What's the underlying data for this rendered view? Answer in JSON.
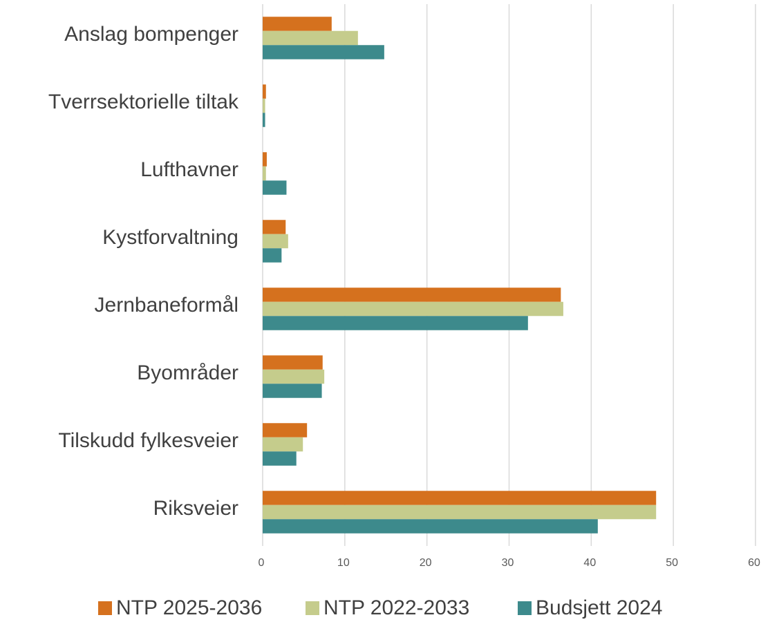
{
  "chart_data": {
    "type": "barh",
    "categories": [
      "Anslag bompenger",
      "Tverrsektorielle tiltak",
      "Lufthavner",
      "Kystforvaltning",
      "Jernbaneformål",
      "Byområder",
      "Tilskudd fylkesveier",
      "Riksveier"
    ],
    "series": [
      {
        "name": "NTP 2025-2036",
        "color": "#d5711e",
        "values": [
          8.4,
          0.4,
          0.5,
          2.8,
          36.3,
          7.3,
          5.4,
          47.9
        ]
      },
      {
        "name": "NTP 2022-2033",
        "color": "#c5cc8c",
        "values": [
          11.6,
          0.3,
          0.4,
          3.1,
          36.6,
          7.5,
          4.9,
          47.9
        ]
      },
      {
        "name": "Budsjett 2024",
        "color": "#3d8a8c",
        "values": [
          14.8,
          0.3,
          2.9,
          2.3,
          32.3,
          7.2,
          4.1,
          40.8
        ]
      }
    ],
    "xlim": [
      0,
      60
    ],
    "xticks": [
      0,
      10,
      20,
      30,
      40,
      50,
      60
    ],
    "grid": true,
    "legend": "bottom"
  }
}
